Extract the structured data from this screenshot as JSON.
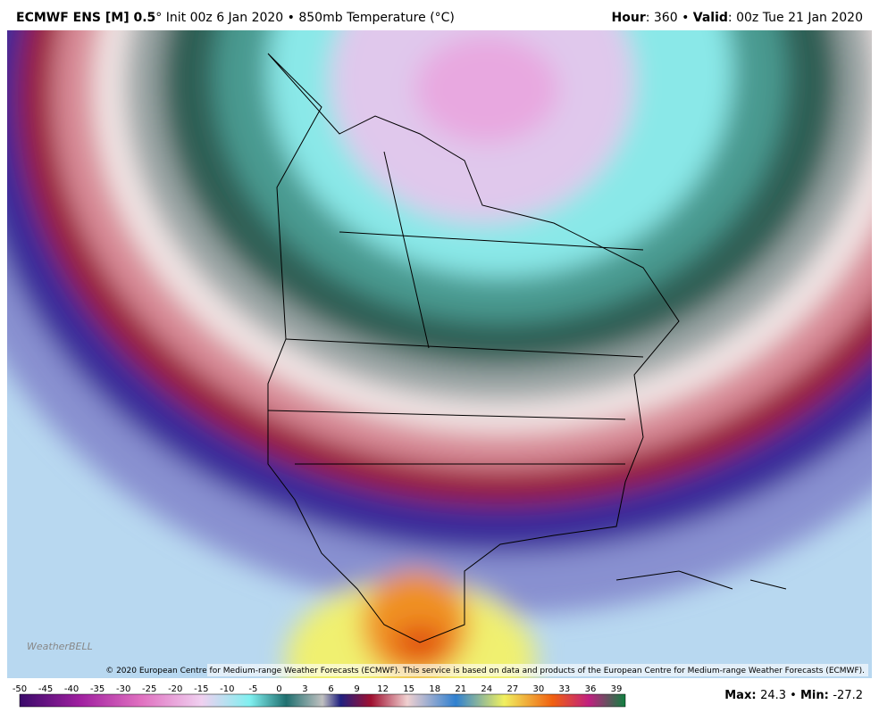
{
  "header": {
    "left_bold": "ECMWF ENS [M] 0.5",
    "left_rest": "° Init 00z 6 Jan 2020 • 850mb Temperature (°C)",
    "hour_label": "Hour",
    "hour_rest": ": 360 • ",
    "valid_label": "Valid",
    "valid_rest": ": 00z Tue 21 Jan 2020"
  },
  "map": {
    "copyright": "© 2020 European Centre for Medium-range Weather Forecasts (ECMWF). This service is based on data and products of the European Centre for Medium-range Weather Forecasts (ECMWF).",
    "logo": "WeatherBELL"
  },
  "colorbar": {
    "ticks": [
      -50,
      -45,
      -40,
      -35,
      -30,
      -25,
      -20,
      -15,
      -10,
      -5,
      0,
      3,
      6,
      9,
      12,
      15,
      18,
      21,
      24,
      27,
      30,
      33,
      36,
      39
    ]
  },
  "footer": {
    "max_label": "Max",
    "max_value": 24.3,
    "separator": " • ",
    "min_label": "Min",
    "min_value": -27.2,
    "colon": ": "
  }
}
